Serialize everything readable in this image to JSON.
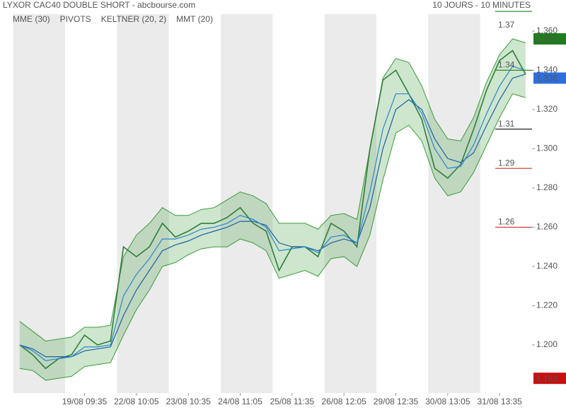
{
  "header": {
    "title": "LYXOR CAC40 DOUBLE SHORT - abcbourse.com",
    "period": "10 JOURS - 10 MINUTES"
  },
  "chart_data": {
    "type": "line",
    "x": [
      0,
      1,
      2,
      3,
      4,
      5,
      6,
      7,
      8,
      9,
      10,
      11,
      12,
      13,
      14,
      15,
      16,
      17,
      18,
      19,
      20,
      21,
      22,
      23,
      24,
      25,
      26,
      27,
      28,
      29,
      30,
      31,
      32,
      33,
      34,
      35,
      36,
      37,
      38,
      39
    ],
    "close": [
      1.2,
      1.195,
      1.188,
      1.193,
      1.195,
      1.205,
      1.2,
      1.202,
      1.25,
      1.245,
      1.25,
      1.262,
      1.255,
      1.258,
      1.262,
      1.262,
      1.265,
      1.27,
      1.262,
      1.258,
      1.238,
      1.25,
      1.25,
      1.245,
      1.262,
      1.258,
      1.25,
      1.3,
      1.335,
      1.34,
      1.328,
      1.315,
      1.29,
      1.285,
      1.292,
      1.31,
      1.33,
      1.345,
      1.35,
      1.338
    ],
    "close_color": "#2f7d3a",
    "indicators": [
      {
        "name": "MME (30)",
        "color": "#1f5fa0",
        "values": [
          1.2,
          1.198,
          1.194,
          1.194,
          1.194,
          1.197,
          1.198,
          1.199,
          1.215,
          1.228,
          1.238,
          1.248,
          1.251,
          1.253,
          1.256,
          1.258,
          1.26,
          1.263,
          1.263,
          1.261,
          1.252,
          1.25,
          1.25,
          1.248,
          1.252,
          1.254,
          1.252,
          1.27,
          1.3,
          1.32,
          1.325,
          1.32,
          1.305,
          1.295,
          1.293,
          1.298,
          1.312,
          1.325,
          1.336,
          1.338
        ]
      },
      {
        "name": "PIVOTS",
        "color": "#444444"
      },
      {
        "name": "KELTNER (20, 2)",
        "color": "#3a9a3a",
        "upper": [
          1.212,
          1.207,
          1.202,
          1.203,
          1.204,
          1.209,
          1.209,
          1.21,
          1.245,
          1.256,
          1.262,
          1.27,
          1.266,
          1.266,
          1.269,
          1.27,
          1.274,
          1.278,
          1.276,
          1.272,
          1.262,
          1.262,
          1.262,
          1.259,
          1.266,
          1.267,
          1.264,
          1.3,
          1.336,
          1.346,
          1.344,
          1.332,
          1.315,
          1.305,
          1.304,
          1.316,
          1.334,
          1.348,
          1.356,
          1.354
        ],
        "lower": [
          1.188,
          1.187,
          1.182,
          1.183,
          1.184,
          1.189,
          1.19,
          1.191,
          1.205,
          1.218,
          1.228,
          1.24,
          1.242,
          1.246,
          1.249,
          1.25,
          1.25,
          1.254,
          1.252,
          1.248,
          1.234,
          1.236,
          1.238,
          1.235,
          1.244,
          1.245,
          1.24,
          1.256,
          1.284,
          1.308,
          1.312,
          1.304,
          1.285,
          1.276,
          1.278,
          1.288,
          1.302,
          1.316,
          1.328,
          1.326
        ]
      },
      {
        "name": "MMT (20)",
        "color": "#2a85d0",
        "values": [
          1.2,
          1.197,
          1.192,
          1.193,
          1.194,
          1.199,
          1.199,
          1.2,
          1.225,
          1.236,
          1.244,
          1.254,
          1.254,
          1.256,
          1.259,
          1.26,
          1.262,
          1.266,
          1.264,
          1.26,
          1.248,
          1.249,
          1.25,
          1.247,
          1.255,
          1.256,
          1.252,
          1.278,
          1.31,
          1.328,
          1.328,
          1.318,
          1.3,
          1.29,
          1.291,
          1.302,
          1.318,
          1.332,
          1.342,
          1.34
        ]
      }
    ],
    "pivots": [
      {
        "value": 1.37,
        "color": "#2e8b2e"
      },
      {
        "value": 1.34,
        "color": "#2e8b2e"
      },
      {
        "value": 1.31,
        "color": "#222222"
      },
      {
        "value": 1.29,
        "color": "#d03030"
      },
      {
        "value": 1.26,
        "color": "#d03030"
      }
    ],
    "price_tags": [
      {
        "value": 1.356,
        "color": "#1e7d1e"
      },
      {
        "value": 1.336,
        "color": "#2d6fe0"
      },
      {
        "value": 1.183,
        "color": "#c81010"
      }
    ],
    "xlim": [
      -0.7,
      39.5
    ],
    "xticks": [
      {
        "value": 5,
        "label": "19/08 09:35"
      },
      {
        "value": 9,
        "label": "22/08 10:05"
      },
      {
        "value": 13,
        "label": "23/08 10:35"
      },
      {
        "value": 17,
        "label": "24/08 11:05"
      },
      {
        "value": 21,
        "label": "25/08 11:35"
      },
      {
        "value": 25,
        "label": "26/08 12:05"
      },
      {
        "value": 29,
        "label": "29/08 12:35"
      },
      {
        "value": 33,
        "label": "30/08 13:05"
      },
      {
        "value": 37,
        "label": "31/08 13:35"
      }
    ],
    "ylim": [
      1.1755,
      1.3686
    ],
    "yticks": [
      {
        "value": 1.2,
        "label": "1.200"
      },
      {
        "value": 1.22,
        "label": "1.220"
      },
      {
        "value": 1.24,
        "label": "1.240"
      },
      {
        "value": 1.26,
        "label": "1.260"
      },
      {
        "value": 1.28,
        "label": "1.280"
      },
      {
        "value": 1.3,
        "label": "1.300"
      },
      {
        "value": 1.32,
        "label": "1.320"
      },
      {
        "value": 1.34,
        "label": "1.340"
      },
      {
        "value": 1.36,
        "label": "1.360"
      }
    ]
  }
}
